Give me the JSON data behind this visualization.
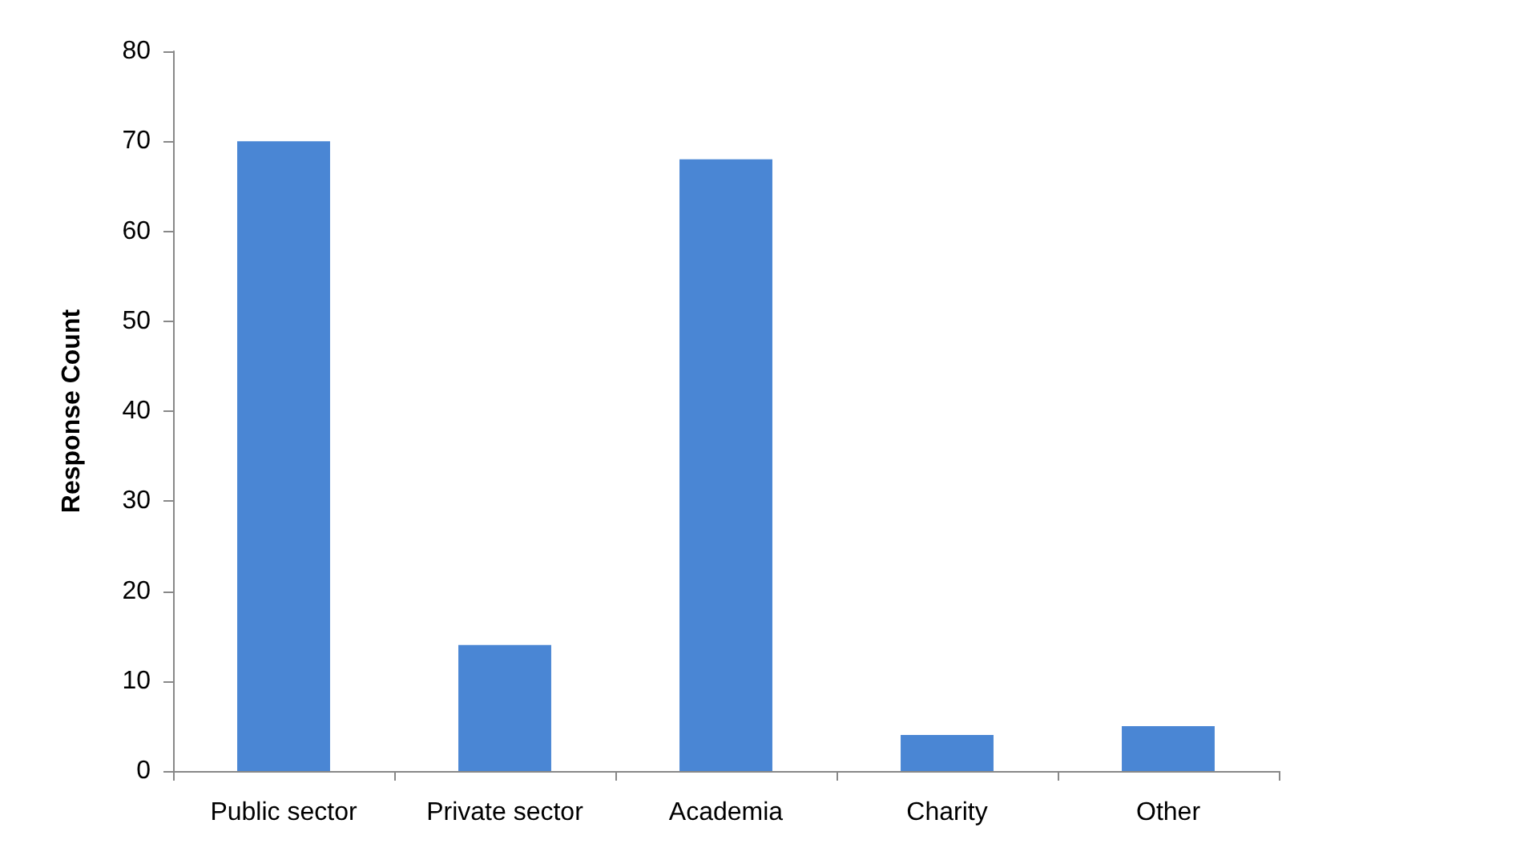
{
  "chart_data": {
    "type": "bar",
    "ylabel": "Response Count",
    "categories": [
      "Public sector",
      "Private sector",
      "Academia",
      "Charity",
      "Other"
    ],
    "values": [
      70,
      14,
      68,
      4,
      5
    ],
    "color": "#4a86d4",
    "ylim": [
      0,
      80
    ],
    "yticks": [
      0,
      10,
      20,
      30,
      40,
      50,
      60,
      70,
      80
    ],
    "grid": false
  }
}
